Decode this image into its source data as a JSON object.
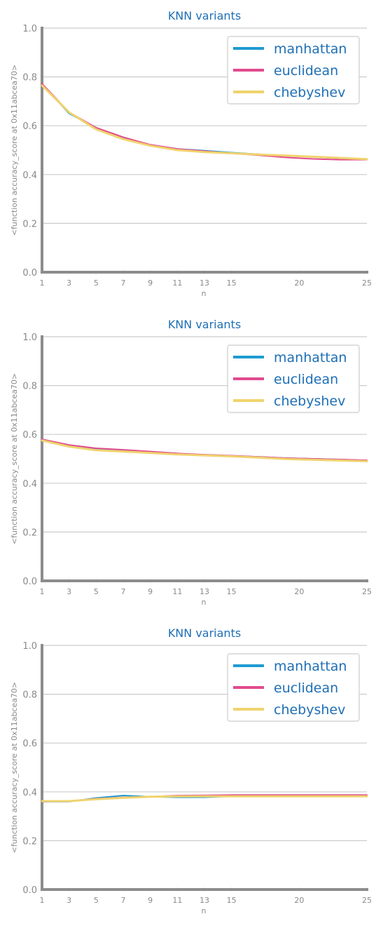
{
  "chart_data": [
    {
      "type": "line",
      "title": "KNN variants",
      "xlabel": "n",
      "ylabel": "<function accuracy_score at 0x11abcea70>",
      "xlim": [
        1,
        25
      ],
      "ylim": [
        0.0,
        1.0
      ],
      "xticks": [
        1,
        3,
        5,
        7,
        9,
        11,
        13,
        15,
        20,
        25
      ],
      "yticks": [
        0.0,
        0.2,
        0.4,
        0.6,
        0.8,
        1.0
      ],
      "grid": "y",
      "legend": "top-right",
      "x": [
        1,
        3,
        5,
        7,
        9,
        11,
        13,
        15,
        17,
        19,
        21,
        23,
        25
      ],
      "series": [
        {
          "name": "manhattan",
          "color": "#1f9bd1",
          "values": [
            0.77,
            0.65,
            0.59,
            0.55,
            0.52,
            0.505,
            0.498,
            0.49,
            0.483,
            0.477,
            0.472,
            0.467,
            0.462
          ]
        },
        {
          "name": "euclidean",
          "color": "#e14b8e",
          "values": [
            0.772,
            0.655,
            0.592,
            0.553,
            0.522,
            0.505,
            0.496,
            0.487,
            0.479,
            0.47,
            0.464,
            0.461,
            0.461
          ]
        },
        {
          "name": "chebyshev",
          "color": "#f0d36e",
          "values": [
            0.765,
            0.655,
            0.585,
            0.545,
            0.518,
            0.5,
            0.492,
            0.487,
            0.482,
            0.478,
            0.473,
            0.468,
            0.463
          ]
        }
      ]
    },
    {
      "type": "line",
      "title": "KNN variants",
      "xlabel": "n",
      "ylabel": "<function accuracy_score at 0x11abcea70>",
      "xlim": [
        1,
        25
      ],
      "ylim": [
        0.0,
        1.0
      ],
      "xticks": [
        1,
        3,
        5,
        7,
        9,
        11,
        13,
        15,
        20,
        25
      ],
      "yticks": [
        0.0,
        0.2,
        0.4,
        0.6,
        0.8,
        1.0
      ],
      "grid": "y",
      "legend": "top-right",
      "x": [
        1,
        3,
        5,
        7,
        9,
        11,
        13,
        15,
        17,
        19,
        21,
        23,
        25
      ],
      "series": [
        {
          "name": "manhattan",
          "color": "#1f9bd1",
          "values": [
            0.578,
            0.555,
            0.542,
            0.535,
            0.528,
            0.521,
            0.516,
            0.512,
            0.508,
            0.503,
            0.5,
            0.497,
            0.493
          ]
        },
        {
          "name": "euclidean",
          "color": "#e14b8e",
          "values": [
            0.58,
            0.557,
            0.543,
            0.537,
            0.53,
            0.522,
            0.517,
            0.513,
            0.508,
            0.503,
            0.5,
            0.497,
            0.494
          ]
        },
        {
          "name": "chebyshev",
          "color": "#f0d36e",
          "values": [
            0.575,
            0.55,
            0.535,
            0.53,
            0.524,
            0.518,
            0.514,
            0.51,
            0.505,
            0.499,
            0.496,
            0.493,
            0.49
          ]
        }
      ]
    },
    {
      "type": "line",
      "title": "KNN variants",
      "xlabel": "n",
      "ylabel": "<function accuracy_score at 0x11abcea70>",
      "xlim": [
        1,
        25
      ],
      "ylim": [
        0.0,
        1.0
      ],
      "xticks": [
        1,
        3,
        5,
        7,
        9,
        11,
        13,
        15,
        20,
        25
      ],
      "yticks": [
        0.0,
        0.2,
        0.4,
        0.6,
        0.8,
        1.0
      ],
      "grid": "y",
      "legend": "top-right",
      "x": [
        1,
        3,
        5,
        7,
        9,
        11,
        13,
        15,
        17,
        19,
        21,
        23,
        25
      ],
      "series": [
        {
          "name": "manhattan",
          "color": "#1f9bd1",
          "values": [
            0.36,
            0.36,
            0.375,
            0.385,
            0.38,
            0.378,
            0.378,
            0.382,
            0.382,
            0.382,
            0.383,
            0.383,
            0.383
          ]
        },
        {
          "name": "euclidean",
          "color": "#e14b8e",
          "values": [
            0.36,
            0.362,
            0.372,
            0.378,
            0.38,
            0.385,
            0.386,
            0.387,
            0.387,
            0.387,
            0.387,
            0.387,
            0.387
          ]
        },
        {
          "name": "chebyshev",
          "color": "#f0d36e",
          "values": [
            0.362,
            0.362,
            0.37,
            0.376,
            0.38,
            0.382,
            0.382,
            0.382,
            0.382,
            0.382,
            0.382,
            0.382,
            0.382
          ]
        }
      ]
    }
  ]
}
